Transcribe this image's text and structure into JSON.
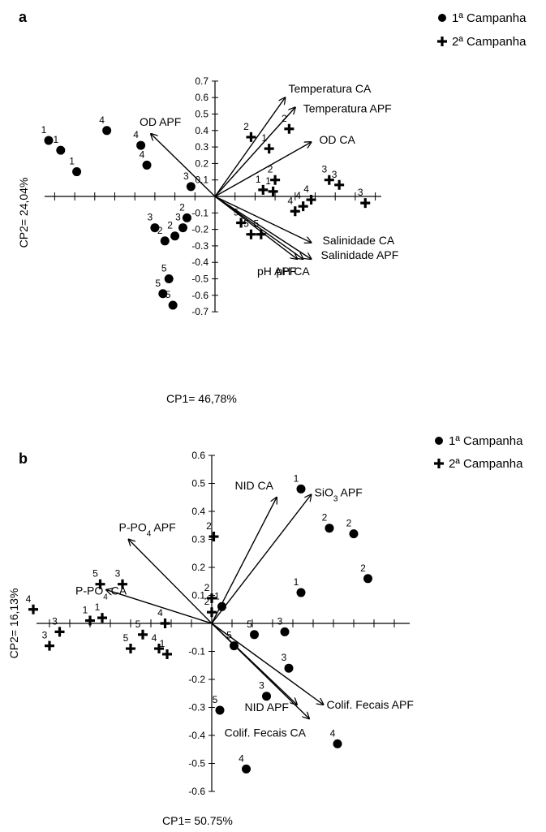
{
  "figure": {
    "legend": [
      "1ª Campanha",
      "2ª Campanha"
    ],
    "colors": {
      "ink": "#000000",
      "background": "#ffffff"
    }
  },
  "chart_data": [
    {
      "type": "scatter",
      "panel": "a",
      "xlabel": "CP1= 46,78%",
      "ylabel": "CP2= 24,04%",
      "ylim": [
        -0.7,
        0.7
      ],
      "yticks": [
        "0.7",
        "0.6",
        "0.5",
        "0.4",
        "0.3",
        "0.2",
        "0.1",
        "-0.1",
        "-0.2",
        "-0.3",
        "-0.4",
        "-0.5",
        "-0.6",
        "-0.7"
      ],
      "series": [
        {
          "name": "1ª Campanha",
          "marker": "circle",
          "points": [
            {
              "label": "1",
              "x": -0.83,
              "y": 0.34
            },
            {
              "label": "1",
              "x": -0.77,
              "y": 0.28
            },
            {
              "label": "1",
              "x": -0.69,
              "y": 0.15
            },
            {
              "label": "4",
              "x": -0.54,
              "y": 0.4
            },
            {
              "label": "4",
              "x": -0.37,
              "y": 0.31
            },
            {
              "label": "4",
              "x": -0.34,
              "y": 0.19
            },
            {
              "label": "3",
              "x": -0.12,
              "y": 0.06
            },
            {
              "label": "3",
              "x": -0.3,
              "y": -0.19
            },
            {
              "label": "2",
              "x": -0.25,
              "y": -0.27
            },
            {
              "label": "2",
              "x": -0.2,
              "y": -0.24
            },
            {
              "label": "3",
              "x": -0.16,
              "y": -0.19
            },
            {
              "label": "2",
              "x": -0.14,
              "y": -0.13
            },
            {
              "label": "5",
              "x": -0.23,
              "y": -0.5
            },
            {
              "label": "5",
              "x": -0.26,
              "y": -0.59
            },
            {
              "label": "5",
              "x": -0.21,
              "y": -0.66
            }
          ]
        },
        {
          "name": "2ª Campanha",
          "marker": "plus",
          "points": [
            {
              "label": "2",
              "x": 0.18,
              "y": 0.36
            },
            {
              "label": "2",
              "x": 0.37,
              "y": 0.41
            },
            {
              "label": "1",
              "x": 0.27,
              "y": 0.29
            },
            {
              "label": "2",
              "x": 0.3,
              "y": 0.1
            },
            {
              "label": "1",
              "x": 0.24,
              "y": 0.04
            },
            {
              "label": "1",
              "x": 0.29,
              "y": 0.03
            },
            {
              "label": "3",
              "x": 0.57,
              "y": 0.1
            },
            {
              "label": "3",
              "x": 0.62,
              "y": 0.07
            },
            {
              "label": "3",
              "x": 0.75,
              "y": -0.04
            },
            {
              "label": "4",
              "x": 0.48,
              "y": -0.02
            },
            {
              "label": "4",
              "x": 0.44,
              "y": -0.06
            },
            {
              "label": "4",
              "x": 0.4,
              "y": -0.09
            },
            {
              "label": "5",
              "x": 0.13,
              "y": -0.16
            },
            {
              "label": "5",
              "x": 0.18,
              "y": -0.23
            },
            {
              "label": "5",
              "x": 0.23,
              "y": -0.23
            }
          ]
        }
      ],
      "vectors": [
        {
          "label": "Temperatura CA",
          "x": 0.35,
          "y": 0.6
        },
        {
          "label": "Temperatura APF",
          "x": 0.4,
          "y": 0.54
        },
        {
          "label": "OD CA",
          "x": 0.48,
          "y": 0.33
        },
        {
          "label": "OD APF",
          "x": -0.32,
          "y": 0.38
        },
        {
          "label": "Salinidade CA",
          "x": 0.48,
          "y": -0.28
        },
        {
          "label": "Salinidade APF",
          "x": 0.48,
          "y": -0.38
        },
        {
          "label": "pH APF",
          "x": 0.41,
          "y": -0.38
        },
        {
          "label": "pH CA",
          "x": 0.44,
          "y": -0.38
        }
      ]
    },
    {
      "type": "scatter",
      "panel": "b",
      "xlabel": "CP1= 50.75%",
      "ylabel": "CP2= 16,13%",
      "ylim": [
        -0.6,
        0.6
      ],
      "yticks": [
        "0.6",
        "0.5",
        "0.4",
        "0.3",
        "0.2",
        "0.1",
        "-0.1",
        "-0.2",
        "-0.3",
        "-0.4",
        "-0.5",
        "-0.6"
      ],
      "series": [
        {
          "name": "1ª Campanha",
          "marker": "circle",
          "points": [
            {
              "label": "1",
              "x": 0.44,
              "y": 0.48
            },
            {
              "label": "2",
              "x": 0.58,
              "y": 0.34
            },
            {
              "label": "2",
              "x": 0.7,
              "y": 0.32
            },
            {
              "label": "2",
              "x": 0.77,
              "y": 0.16
            },
            {
              "label": "1",
              "x": 0.44,
              "y": 0.11
            },
            {
              "label": "1",
              "x": 0.05,
              "y": 0.06
            },
            {
              "label": "5",
              "x": 0.21,
              "y": -0.04
            },
            {
              "label": "3",
              "x": 0.36,
              "y": -0.03
            },
            {
              "label": "5",
              "x": 0.11,
              "y": -0.08
            },
            {
              "label": "3",
              "x": 0.38,
              "y": -0.16
            },
            {
              "label": "3",
              "x": 0.27,
              "y": -0.26
            },
            {
              "label": "5",
              "x": 0.04,
              "y": -0.31
            },
            {
              "label": "4",
              "x": 0.62,
              "y": -0.43
            },
            {
              "label": "4",
              "x": 0.17,
              "y": -0.52
            }
          ]
        },
        {
          "name": "2ª Campanha",
          "marker": "plus",
          "points": [
            {
              "label": "2",
              "x": 0.01,
              "y": 0.31
            },
            {
              "label": "2",
              "x": 0.0,
              "y": 0.09
            },
            {
              "label": "2",
              "x": 0.0,
              "y": 0.04
            },
            {
              "label": "5",
              "x": -0.55,
              "y": 0.14
            },
            {
              "label": "3",
              "x": -0.44,
              "y": 0.14
            },
            {
              "label": "4",
              "x": -0.88,
              "y": 0.05
            },
            {
              "label": "4",
              "x": -0.23,
              "y": 0.0
            },
            {
              "label": "3",
              "x": -0.75,
              "y": -0.03
            },
            {
              "label": "1",
              "x": -0.6,
              "y": 0.01
            },
            {
              "label": "1",
              "x": -0.54,
              "y": 0.02
            },
            {
              "label": "5",
              "x": -0.34,
              "y": -0.04
            },
            {
              "label": "3",
              "x": -0.8,
              "y": -0.08
            },
            {
              "label": "5",
              "x": -0.4,
              "y": -0.09
            },
            {
              "label": "4",
              "x": -0.26,
              "y": -0.09
            },
            {
              "label": "1",
              "x": -0.22,
              "y": -0.11
            }
          ]
        }
      ],
      "vectors": [
        {
          "label": "NID CA",
          "x": 0.32,
          "y": 0.45
        },
        {
          "label": "SiO3 APF",
          "x": 0.49,
          "y": 0.46
        },
        {
          "label": "P-PO4 APF",
          "x": -0.41,
          "y": 0.3
        },
        {
          "label": "P-PO4 CA",
          "x": -0.52,
          "y": 0.12
        },
        {
          "label": "Colif. Fecais APF",
          "x": 0.55,
          "y": -0.29
        },
        {
          "label": "Colif. Fecais CA",
          "x": 0.48,
          "y": -0.34
        },
        {
          "label": "NID APF",
          "x": 0.42,
          "y": -0.29
        }
      ]
    }
  ]
}
